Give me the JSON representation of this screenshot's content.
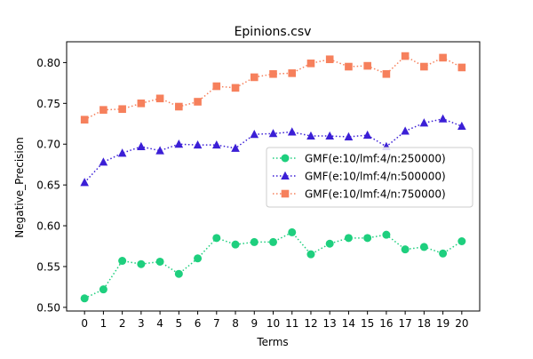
{
  "chart_data": {
    "type": "line",
    "title": "Epinions.csv",
    "xlabel": "Terms",
    "ylabel": "Negative_Precision",
    "x": [
      0,
      1,
      2,
      3,
      4,
      5,
      6,
      7,
      8,
      9,
      10,
      11,
      12,
      13,
      14,
      15,
      16,
      17,
      18,
      19,
      20
    ],
    "xticks": [
      "0",
      "1",
      "2",
      "3",
      "4",
      "5",
      "6",
      "7",
      "8",
      "9",
      "10",
      "11",
      "12",
      "13",
      "14",
      "15",
      "16",
      "17",
      "18",
      "19",
      "20"
    ],
    "xlim": [
      -0.95,
      20.95
    ],
    "ylim": [
      0.4955,
      0.8255
    ],
    "yticks": [
      0.5,
      0.55,
      0.6,
      0.65,
      0.7,
      0.75,
      0.8
    ],
    "ytick_labels": [
      "0.50",
      "0.55",
      "0.60",
      "0.65",
      "0.70",
      "0.75",
      "0.80"
    ],
    "grid": false,
    "legend_position": "center-right",
    "series": [
      {
        "name": "GMF(e:10/lmf:4/n:250000)",
        "color": "#1ecf7e",
        "marker": "circle",
        "linestyle": "dotted",
        "values": [
          0.511,
          0.522,
          0.557,
          0.553,
          0.556,
          0.541,
          0.56,
          0.585,
          0.577,
          0.58,
          0.58,
          0.592,
          0.565,
          0.578,
          0.585,
          0.585,
          0.589,
          0.571,
          0.574,
          0.566,
          0.581
        ]
      },
      {
        "name": "GMF(e:10/lmf:4/n:500000)",
        "color": "#3b1fd6",
        "marker": "triangle",
        "linestyle": "dotted",
        "values": [
          0.653,
          0.678,
          0.689,
          0.697,
          0.692,
          0.7,
          0.699,
          0.699,
          0.695,
          0.712,
          0.713,
          0.715,
          0.71,
          0.71,
          0.709,
          0.711,
          0.697,
          0.716,
          0.726,
          0.731,
          0.722
        ]
      },
      {
        "name": "GMF(e:10/lmf:4/n:750000)",
        "color": "#f6805c",
        "marker": "square",
        "linestyle": "dotted",
        "values": [
          0.73,
          0.742,
          0.743,
          0.75,
          0.756,
          0.746,
          0.752,
          0.771,
          0.769,
          0.782,
          0.786,
          0.787,
          0.799,
          0.804,
          0.795,
          0.796,
          0.786,
          0.808,
          0.795,
          0.806,
          0.794
        ]
      }
    ]
  }
}
